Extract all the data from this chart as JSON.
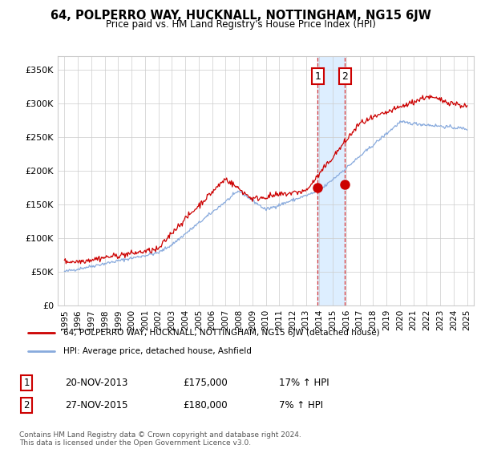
{
  "title": "64, POLPERRO WAY, HUCKNALL, NOTTINGHAM, NG15 6JW",
  "subtitle": "Price paid vs. HM Land Registry's House Price Index (HPI)",
  "legend_line1": "64, POLPERRO WAY, HUCKNALL, NOTTINGHAM, NG15 6JW (detached house)",
  "legend_line2": "HPI: Average price, detached house, Ashfield",
  "sale1_label": "1",
  "sale1_date": "20-NOV-2013",
  "sale1_price": "£175,000",
  "sale1_hpi": "17% ↑ HPI",
  "sale2_label": "2",
  "sale2_date": "27-NOV-2015",
  "sale2_price": "£180,000",
  "sale2_hpi": "7% ↑ HPI",
  "footer": "Contains HM Land Registry data © Crown copyright and database right 2024.\nThis data is licensed under the Open Government Licence v3.0.",
  "red_color": "#cc0000",
  "blue_color": "#88aadd",
  "highlight_color": "#ddeeff",
  "sale1_x": 2013.88,
  "sale2_x": 2015.9,
  "sale1_y": 175000,
  "sale2_y": 180000,
  "ylim": [
    0,
    370000
  ],
  "xlim": [
    1994.5,
    2025.5
  ],
  "yticks": [
    0,
    50000,
    100000,
    150000,
    200000,
    250000,
    300000,
    350000
  ],
  "xticks": [
    1995,
    1996,
    1997,
    1998,
    1999,
    2000,
    2001,
    2002,
    2003,
    2004,
    2005,
    2006,
    2007,
    2008,
    2009,
    2010,
    2011,
    2012,
    2013,
    2014,
    2015,
    2016,
    2017,
    2018,
    2019,
    2020,
    2021,
    2022,
    2023,
    2024,
    2025
  ]
}
